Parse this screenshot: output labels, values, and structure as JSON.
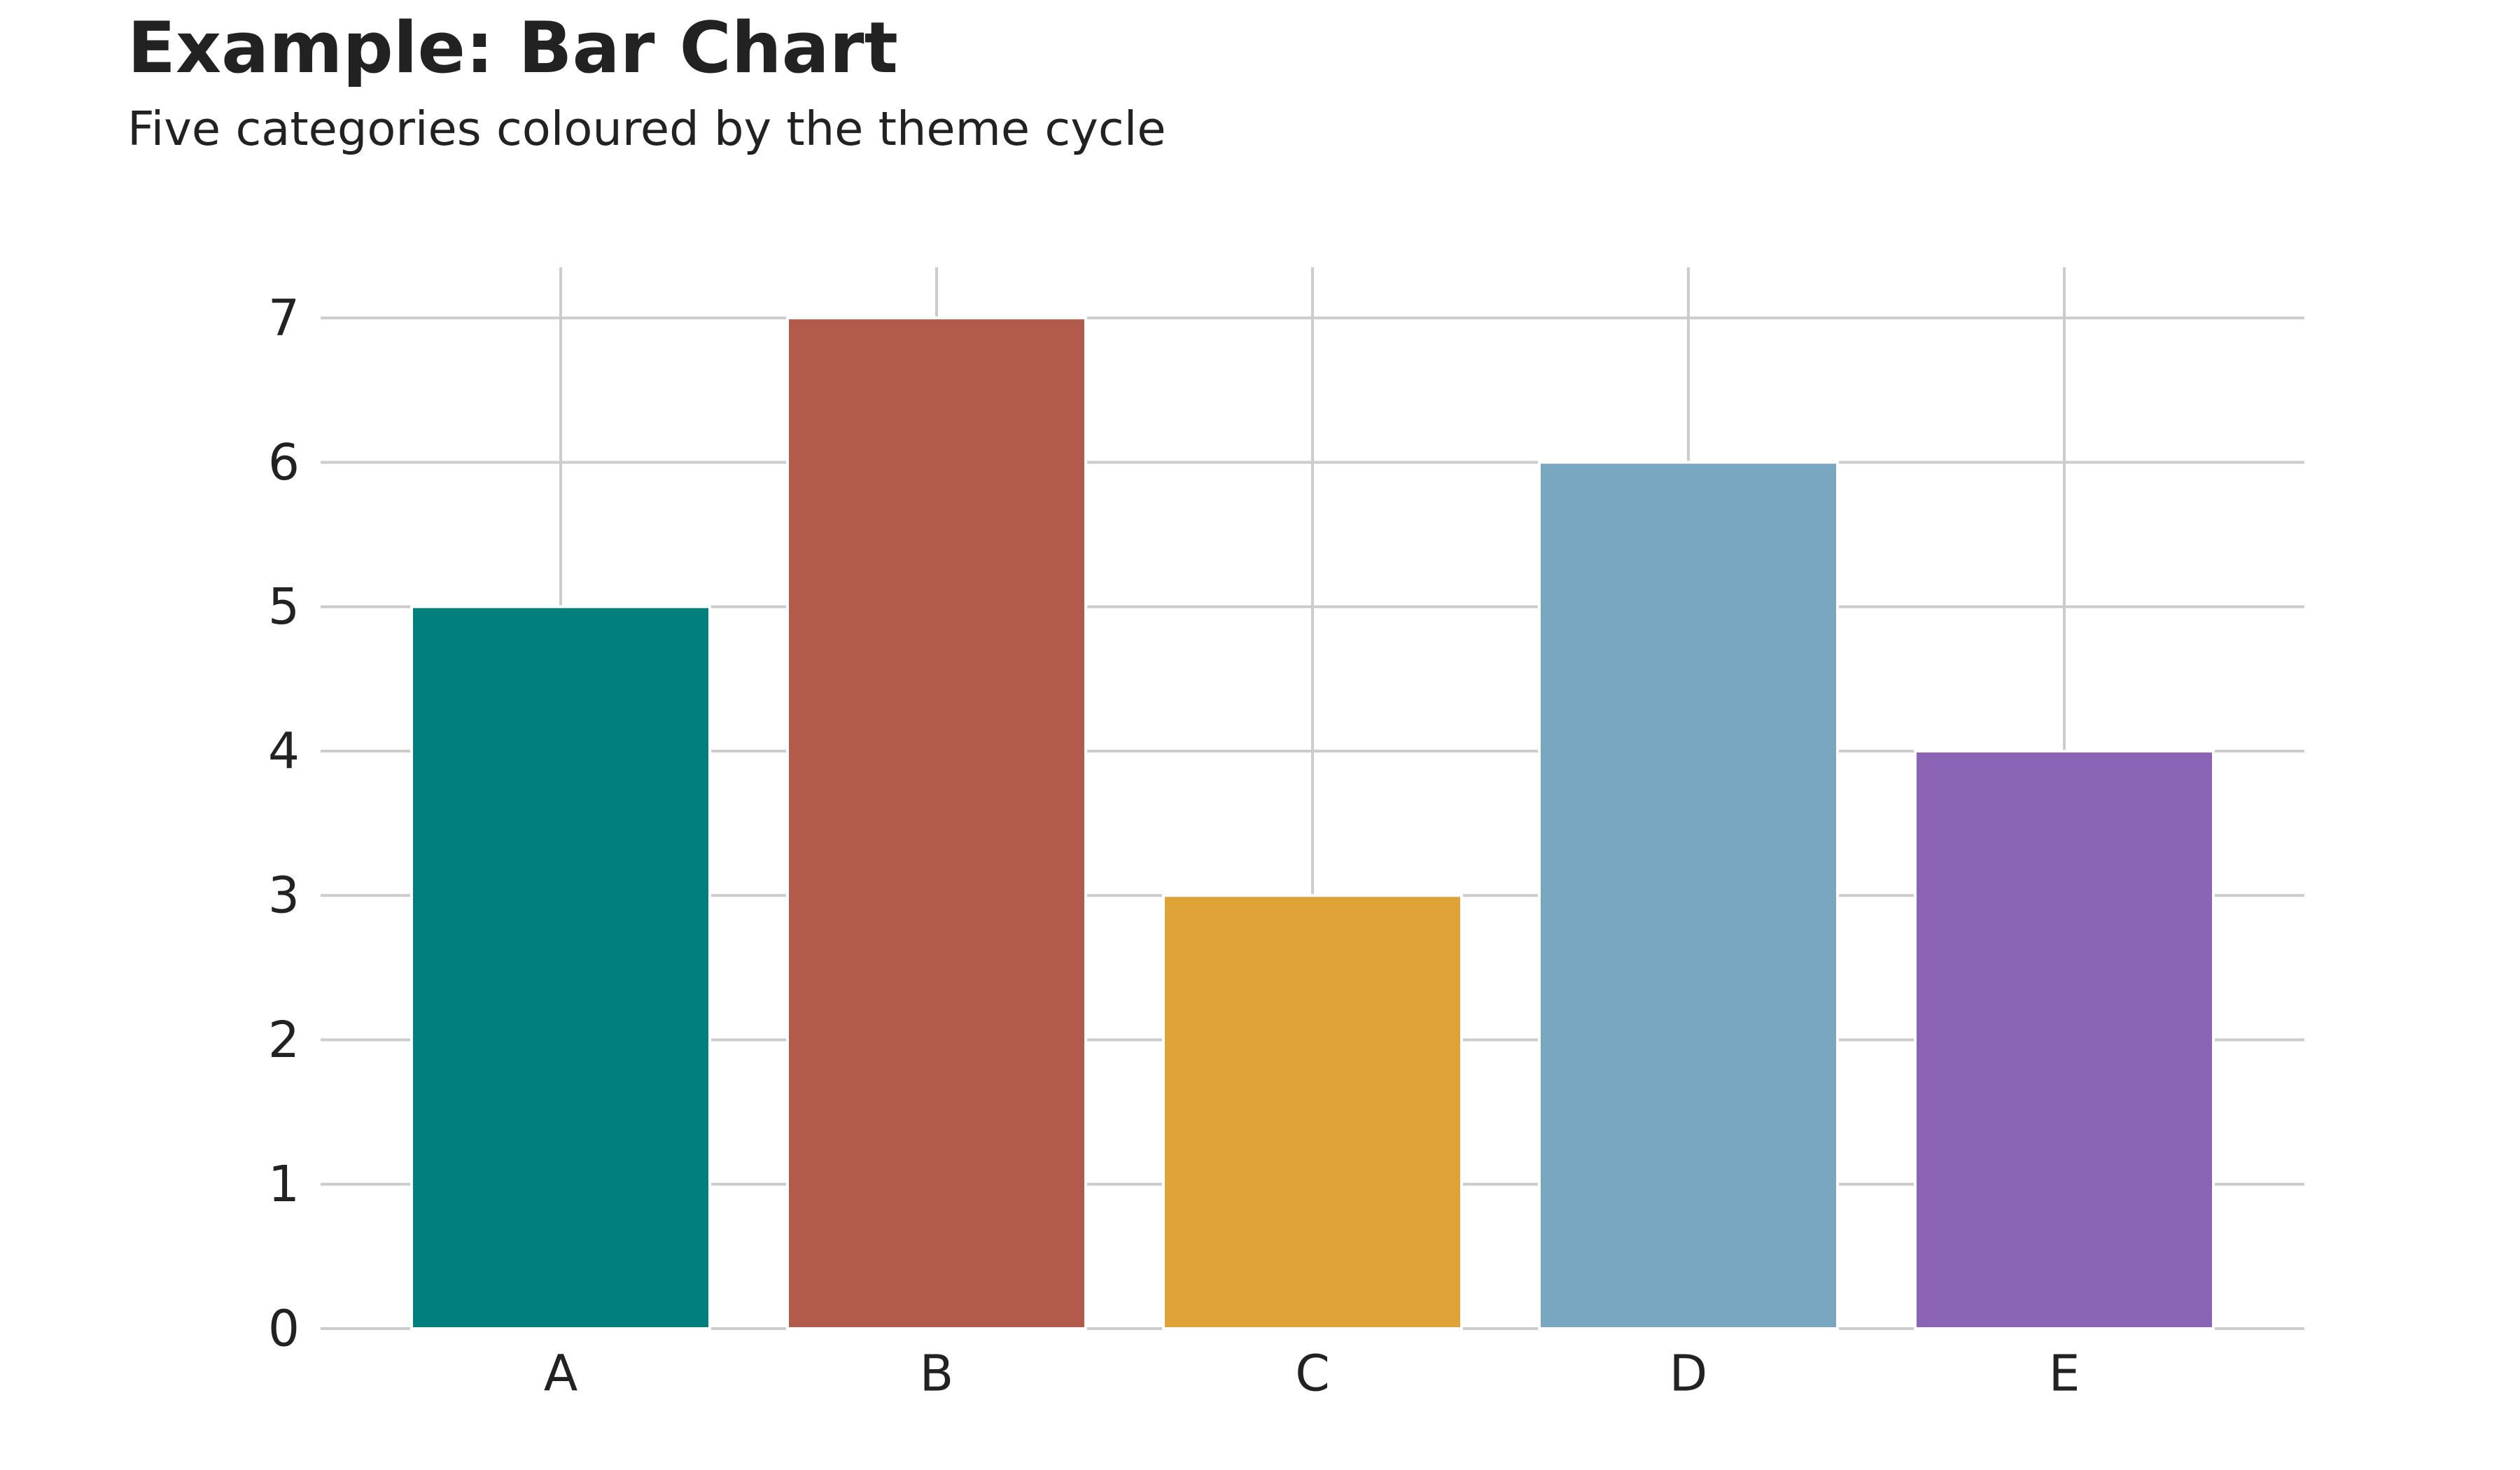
{
  "chart_data": {
    "type": "bar",
    "title": "Example: Bar Chart",
    "subtitle": "Five categories coloured by the theme cycle",
    "xlabel": "",
    "ylabel": "",
    "categories": [
      "A",
      "B",
      "C",
      "D",
      "E"
    ],
    "values": [
      5,
      7,
      3,
      6,
      4
    ],
    "colors": [
      "#007f7c",
      "#b35b4a",
      "#e0a33a",
      "#78a7bf",
      "#8c64b5"
    ],
    "yticks": [
      0,
      1,
      2,
      3,
      4,
      5,
      6,
      7
    ],
    "ylim": [
      0,
      7.35
    ],
    "grid": true,
    "grid_color": "#cccccc",
    "legend": "none"
  }
}
